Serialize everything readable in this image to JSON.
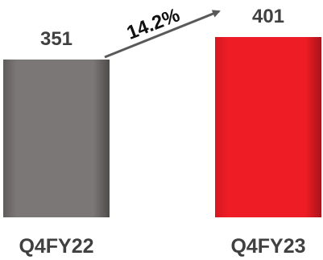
{
  "chart_data": {
    "type": "bar",
    "categories": [
      "Q4FY22",
      "Q4FY23"
    ],
    "values": [
      351,
      401
    ],
    "value_labels": [
      "351",
      "401"
    ],
    "growth_annotation": "14.2%",
    "title": "",
    "xlabel": "",
    "ylabel": "",
    "ylim": [
      0,
      420
    ],
    "grid": false,
    "colors": [
      "#7a7776",
      "#ee1c25"
    ]
  }
}
